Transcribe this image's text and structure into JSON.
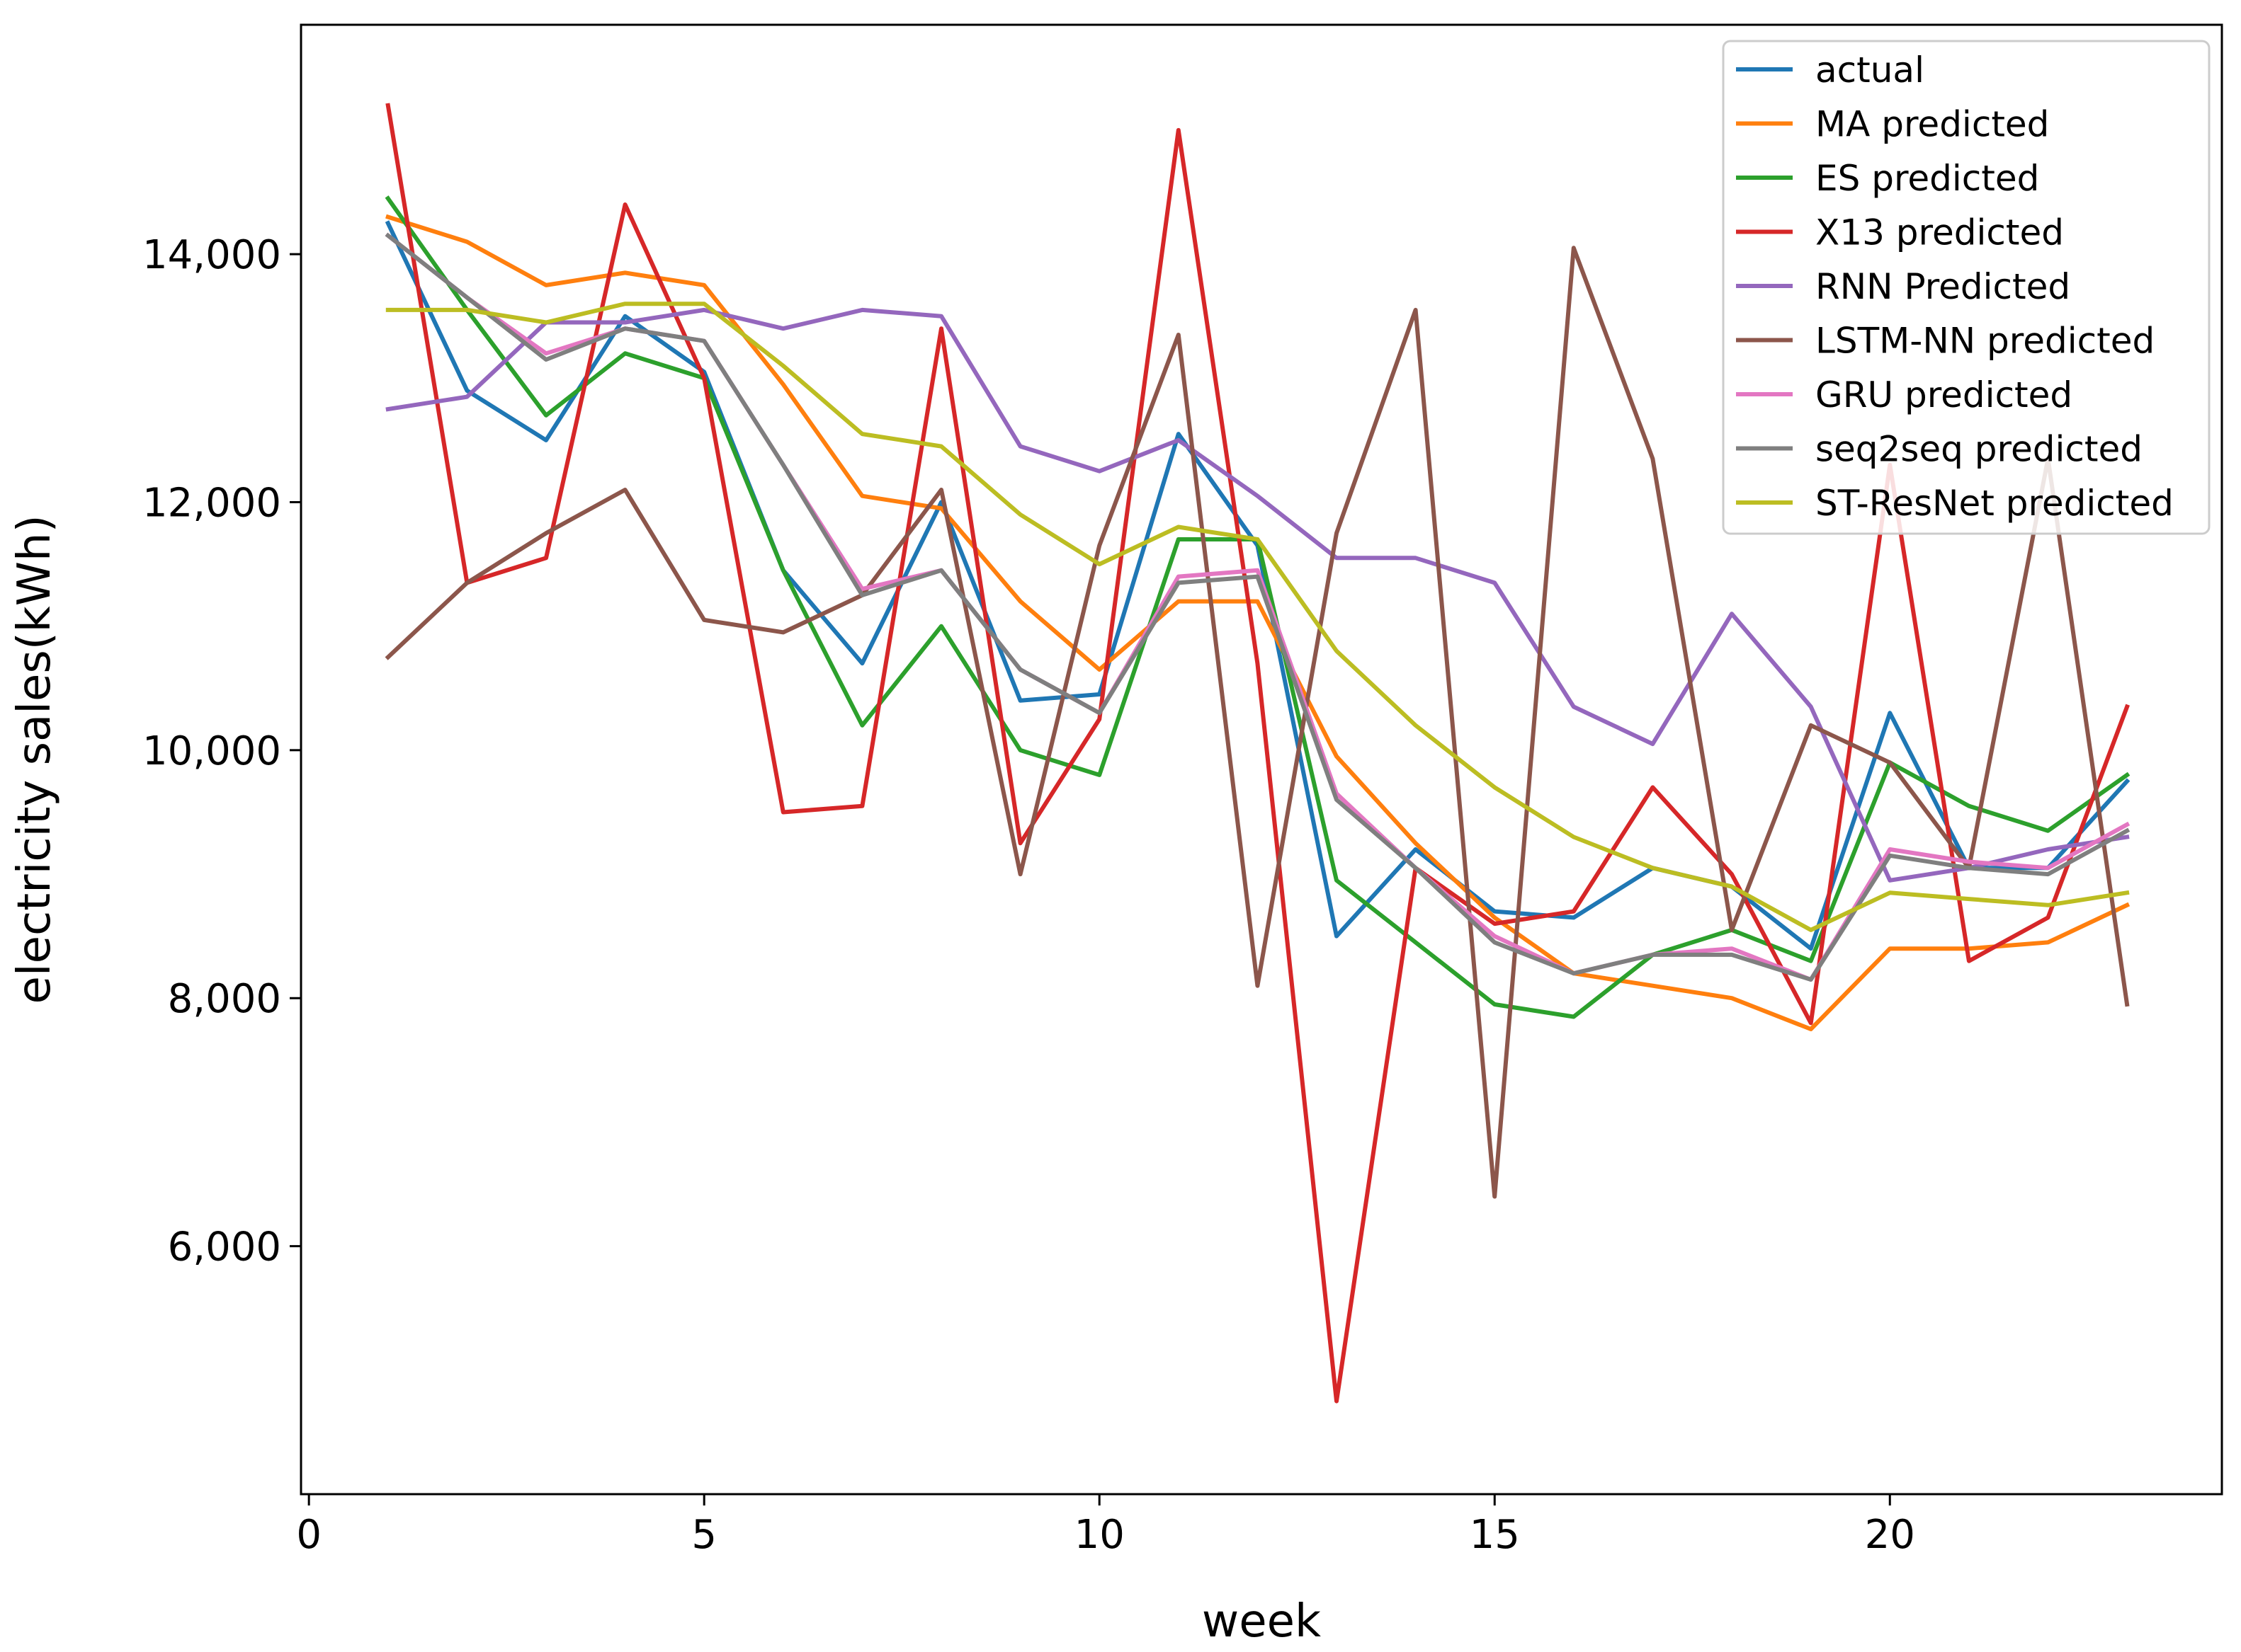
{
  "chart_data": {
    "type": "line",
    "title": "",
    "xlabel": "week",
    "ylabel": "electricity sales(kWh)",
    "xlim": [
      -0.1,
      24.2
    ],
    "ylim": [
      4000,
      15850
    ],
    "xticks": [
      0,
      5,
      10,
      15,
      20
    ],
    "xtick_labels": [
      "0",
      "5",
      "10",
      "15",
      "20"
    ],
    "yticks": [
      6000,
      8000,
      10000,
      12000,
      14000
    ],
    "ytick_labels": [
      "6,000",
      "8,000",
      "10,000",
      "12,000",
      "14,000"
    ],
    "legend_position": "top-right",
    "x": [
      1,
      2,
      3,
      4,
      5,
      6,
      7,
      8,
      9,
      10,
      11,
      12,
      13,
      14,
      15,
      16,
      17,
      18,
      19,
      20,
      21,
      22,
      23
    ],
    "series": [
      {
        "name": "actual",
        "color": "#1f77b4",
        "values": [
          14250,
          12900,
          12500,
          13500,
          13050,
          11450,
          10700,
          12000,
          10400,
          10450,
          12550,
          11650,
          8500,
          9200,
          8700,
          8650,
          9050,
          8900,
          8400,
          10300,
          9050,
          9050,
          9750
        ]
      },
      {
        "name": "MA predicted",
        "color": "#ff7f0e",
        "values": [
          14300,
          14100,
          13750,
          13850,
          13750,
          12950,
          12050,
          11950,
          11200,
          10650,
          11200,
          11200,
          9950,
          9250,
          8650,
          8200,
          8100,
          8000,
          7750,
          8400,
          8400,
          8450,
          8750
        ]
      },
      {
        "name": "ES predicted",
        "color": "#2ca02c",
        "values": [
          14450,
          13550,
          12700,
          13200,
          13000,
          11450,
          10200,
          11000,
          10000,
          9800,
          11700,
          11700,
          8950,
          8450,
          7950,
          7850,
          8350,
          8550,
          8300,
          9900,
          9550,
          9350,
          9800
        ]
      },
      {
        "name": "X13 predicted",
        "color": "#d62728",
        "values": [
          15200,
          11350,
          11550,
          14400,
          13000,
          9500,
          9550,
          13400,
          9250,
          10250,
          15000,
          10700,
          4750,
          9050,
          8600,
          8700,
          9700,
          9000,
          7800,
          12300,
          8300,
          8650,
          10350
        ]
      },
      {
        "name": "RNN Predicted",
        "color": "#9467bd",
        "values": [
          12750,
          12850,
          13450,
          13450,
          13550,
          13400,
          13550,
          13500,
          12450,
          12250,
          12500,
          12050,
          11550,
          11550,
          11350,
          10350,
          10050,
          11100,
          10350,
          8950,
          9050,
          9200,
          9300
        ]
      },
      {
        "name": "LSTM-NN predicted",
        "color": "#8c564b",
        "values": [
          10750,
          11350,
          11750,
          12100,
          11050,
          10950,
          11250,
          12100,
          9000,
          11650,
          13350,
          8100,
          11750,
          13550,
          6400,
          14050,
          12350,
          8550,
          10200,
          9900,
          9050,
          12350,
          7950
        ]
      },
      {
        "name": "GRU predicted",
        "color": "#e377c2",
        "values": [
          14150,
          13650,
          13200,
          13400,
          13300,
          12300,
          11300,
          11450,
          10650,
          10300,
          11400,
          11450,
          9650,
          9050,
          8500,
          8200,
          8350,
          8400,
          8150,
          9200,
          9100,
          9050,
          9400
        ]
      },
      {
        "name": "seq2seq predicted",
        "color": "#7f7f7f",
        "values": [
          14150,
          13650,
          13150,
          13400,
          13300,
          12300,
          11250,
          11450,
          10650,
          10300,
          11350,
          11400,
          9600,
          9050,
          8450,
          8200,
          8350,
          8350,
          8150,
          9150,
          9050,
          9000,
          9350
        ]
      },
      {
        "name": "ST-ResNet predicted",
        "color": "#bcbd22",
        "values": [
          13550,
          13550,
          13450,
          13600,
          13600,
          13100,
          12550,
          12450,
          11900,
          11500,
          11800,
          11700,
          10800,
          10200,
          9700,
          9300,
          9050,
          8900,
          8550,
          8850,
          8800,
          8750,
          8850
        ]
      }
    ]
  }
}
